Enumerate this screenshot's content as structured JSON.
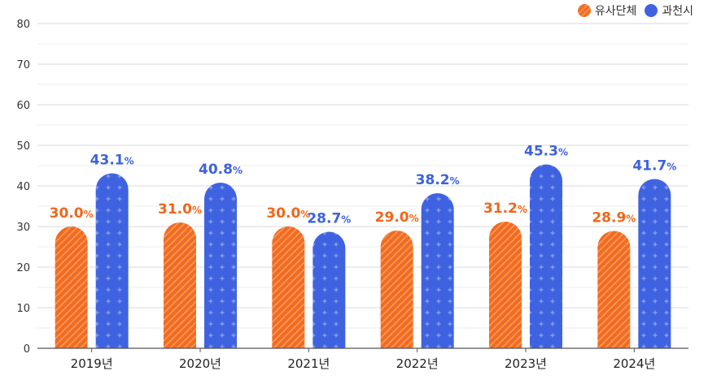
{
  "chart_data": {
    "type": "bar",
    "categories": [
      "2019년",
      "2020년",
      "2021년",
      "2022년",
      "2023년",
      "2024년"
    ],
    "series": [
      {
        "name": "유사단체",
        "values": [
          30.0,
          31.0,
          30.0,
          29.0,
          31.2,
          28.9
        ],
        "color": "#f26b1d"
      },
      {
        "name": "과천시",
        "values": [
          43.1,
          40.8,
          28.7,
          38.2,
          45.3,
          41.7
        ],
        "color": "#3f63e0"
      }
    ],
    "ylim": [
      0,
      80
    ],
    "yticks": [
      0,
      10,
      20,
      30,
      40,
      50,
      60,
      70,
      80
    ],
    "value_suffix": "%",
    "grid": true,
    "legend_position": "top-right"
  }
}
